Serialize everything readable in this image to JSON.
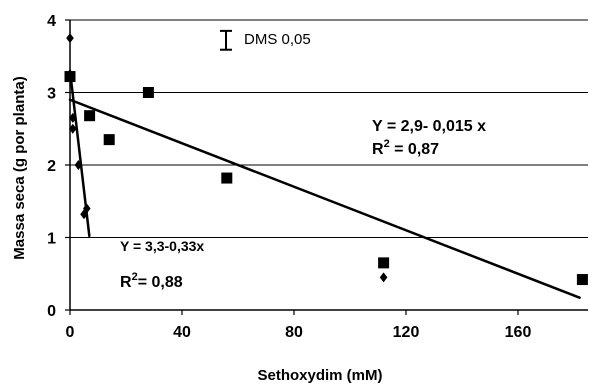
{
  "chart_data": {
    "type": "scatter",
    "xlabel": "Sethoxydim (mM)",
    "ylabel": "Massa seca (g por planta)",
    "xlim": [
      0,
      185
    ],
    "ylim": [
      0,
      4
    ],
    "x_ticks": [
      0,
      40,
      80,
      120,
      160
    ],
    "x_tick_labels": [
      "0",
      "40",
      "80",
      "120",
      "160"
    ],
    "y_ticks": [
      0,
      1,
      2,
      3,
      4
    ],
    "y_tick_labels": [
      "0",
      "1",
      "2",
      "3",
      "4"
    ],
    "grid": "horizontal",
    "series": [
      {
        "marker": "square",
        "points": [
          {
            "x": 0,
            "y": 3.22
          },
          {
            "x": 7,
            "y": 2.68
          },
          {
            "x": 14,
            "y": 2.35
          },
          {
            "x": 28,
            "y": 3.0
          },
          {
            "x": 56,
            "y": 1.82
          },
          {
            "x": 112,
            "y": 0.65
          },
          {
            "x": 183,
            "y": 0.42
          }
        ],
        "fit": {
          "x_from": 0,
          "x_to": 182,
          "intercept": 2.9,
          "slope": -0.015
        }
      },
      {
        "marker": "diamond",
        "points": [
          {
            "x": 0,
            "y": 3.75
          },
          {
            "x": 1,
            "y": 2.65
          },
          {
            "x": 1,
            "y": 2.5
          },
          {
            "x": 3,
            "y": 2.0
          },
          {
            "x": 5,
            "y": 1.32
          },
          {
            "x": 6,
            "y": 1.4
          },
          {
            "x": 112,
            "y": 0.45
          }
        ],
        "fit": {
          "x_from": 0,
          "x_to": 6.9,
          "intercept": 3.3,
          "slope": -0.33
        }
      }
    ],
    "error_bar": {
      "label": "DMS 0,05",
      "y_center": 3.72,
      "half_range": 0.13
    },
    "annotations": {
      "eq1": "Y = 2,9- 0,015 x",
      "r2_1_prefix": "R",
      "r2_1_sup": "2",
      "r2_1_value": " = 0,87",
      "eq2": "Y = 3,3-0,33x",
      "r2_2_prefix": "R",
      "r2_2_sup": "2",
      "r2_2_value": "= 0,88"
    }
  },
  "colors": {
    "marker": "#000000",
    "line": "#000000",
    "grid": "#000000"
  }
}
